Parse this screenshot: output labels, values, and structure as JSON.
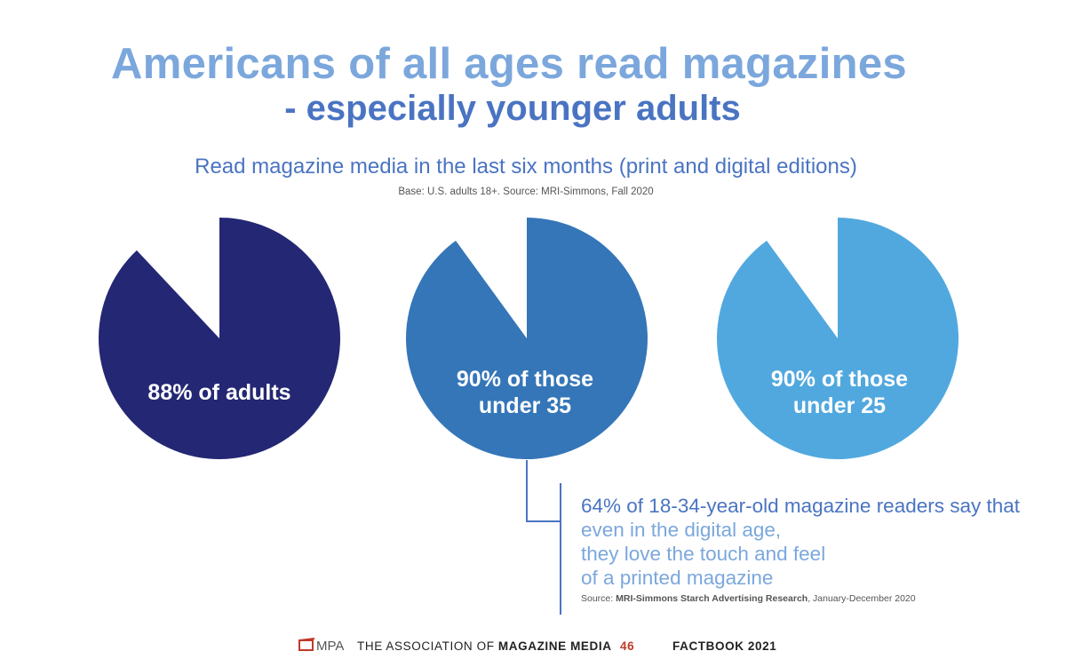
{
  "header": {
    "title": "Americans of all ages read magazines",
    "subtitle": "- especially younger adults"
  },
  "chart_heading": "Read magazine media in the last six months (print and digital editions)",
  "chart_base": "Base: U.S. adults 18+.  Source: MRI-Simmons, Fall 2020",
  "chart_data": {
    "type": "pie",
    "title": "Read magazine media in the last six months (print and digital editions)",
    "pies": [
      {
        "label_line1": "88% of adults",
        "label_line2": "",
        "value": 88,
        "color": "#242773"
      },
      {
        "label_line1": "90% of those",
        "label_line2": "under 35",
        "value": 90,
        "color": "#3576b8"
      },
      {
        "label_line1": "90% of those",
        "label_line2": "under 25",
        "value": 90,
        "color": "#51a8de"
      }
    ]
  },
  "callout": {
    "line1": "64% of 18-34-year-old magazine readers say that",
    "line2": "even in the digital age,",
    "line3": "they love the touch and feel",
    "line4": "of a printed magazine",
    "source_prefix": "Source: ",
    "source_bold": "MRI-Simmons Starch Advertising Research",
    "source_suffix": ", January-December 2020"
  },
  "footer": {
    "logo_text": "MPA",
    "assoc_prefix": "THE ASSOCIATION OF ",
    "assoc_bold": "MAGAZINE MEDIA",
    "page_number": "46",
    "factbook": "FACTBOOK 2021"
  },
  "colors": {
    "title": "#7ba7dc",
    "accent": "#4a74c2",
    "page_number": "#c0392b"
  }
}
